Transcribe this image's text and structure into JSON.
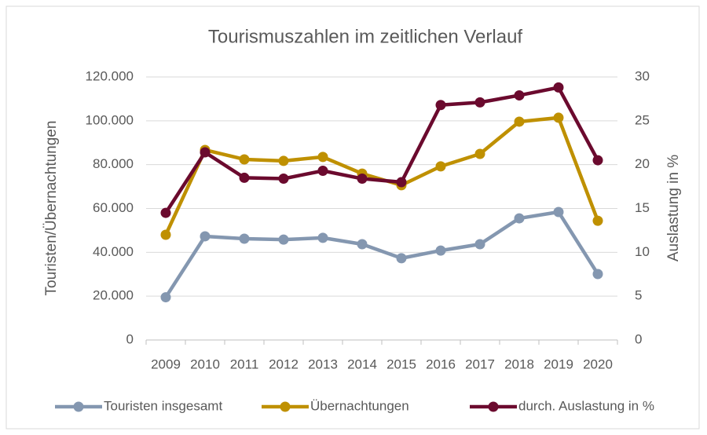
{
  "chart_data": {
    "type": "line",
    "title": "Tourismuszahlen im zeitlichen Verlauf",
    "y_label": "Touristen/Übernachtungen",
    "y2_label": "Auslastung in %",
    "categories": [
      "2009",
      "2010",
      "2011",
      "2012",
      "2013",
      "2014",
      "2015",
      "2016",
      "2017",
      "2018",
      "2019",
      "2020"
    ],
    "series": [
      {
        "name": "Touristen insgesamt",
        "color": "#8497b0",
        "values": [
          19500,
          47300,
          46200,
          45800,
          46600,
          43700,
          37300,
          40800,
          43700,
          55500,
          58400,
          30100
        ]
      },
      {
        "name": "Übernachtungen",
        "color": "#bf9000",
        "values": [
          48000,
          86700,
          82400,
          81700,
          83500,
          75900,
          70600,
          79200,
          84900,
          99600,
          101400,
          54400
        ]
      },
      {
        "name": "durch. Auslastung in %",
        "color": "#6b0a2e",
        "axis": "y2",
        "values": [
          14.5,
          21.4,
          18.5,
          18.4,
          19.3,
          18.4,
          18.0,
          26.8,
          27.1,
          27.9,
          28.8,
          20.5
        ]
      }
    ],
    "ylim": [
      0,
      120000
    ],
    "yticks": [
      0,
      {
        "value": 20000,
        "label": "20.000"
      },
      {
        "value": 40000,
        "label": "40.000"
      },
      {
        "value": 60000,
        "label": "60.000"
      },
      {
        "value": 80000,
        "label": "80.000"
      },
      {
        "value": 100000,
        "label": "100.000"
      },
      {
        "value": 120000,
        "label": "120.000"
      }
    ],
    "y2lim": [
      0,
      30
    ],
    "y2ticks": [
      0,
      5,
      10,
      15,
      20,
      25,
      30
    ],
    "grid": true,
    "legend": "bottom"
  }
}
